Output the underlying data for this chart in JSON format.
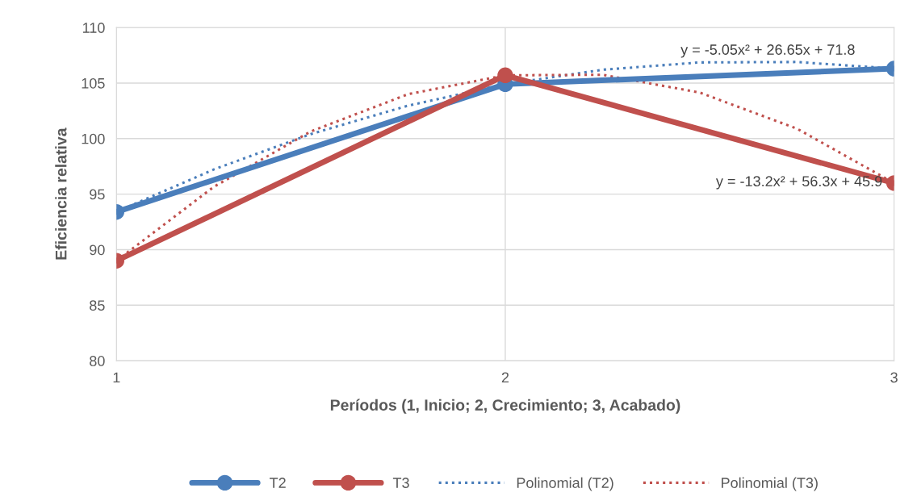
{
  "chart_data": {
    "type": "line",
    "xlabel": "Períodos (1, Inicio; 2, Crecimiento; 3, Acabado)",
    "ylabel": "Eficiencia relativa",
    "x": [
      1,
      2,
      3
    ],
    "series": [
      {
        "name": "T2",
        "color": "#4a7ebb",
        "values": [
          93.4,
          104.9,
          106.3
        ],
        "marker": "circle",
        "line_style": "solid"
      },
      {
        "name": "T3",
        "color": "#c0504d",
        "values": [
          89.0,
          105.7,
          96.0
        ],
        "marker": "circle",
        "line_style": "solid"
      },
      {
        "name": "Polinomial (T2)",
        "color": "#4a7ebb",
        "x": [
          1,
          1.25,
          1.5,
          1.75,
          2,
          2.25,
          2.5,
          2.75,
          3
        ],
        "values": [
          93.4,
          97.22,
          100.41,
          102.97,
          104.9,
          106.2,
          106.86,
          106.9,
          106.3
        ],
        "marker": "none",
        "line_style": "dotted"
      },
      {
        "name": "Polinomial (T3)",
        "color": "#c0504d",
        "x": [
          1,
          1.25,
          1.5,
          1.75,
          2,
          2.25,
          2.5,
          2.75,
          3
        ],
        "values": [
          89.0,
          95.65,
          100.65,
          104.0,
          105.7,
          105.75,
          104.15,
          100.9,
          96.0
        ],
        "marker": "none",
        "line_style": "dotted"
      }
    ],
    "annotations": [
      "y = -5.05x² + 26.65x + 71.8",
      "y = -13.2x² + 56.3x + 45.9"
    ],
    "xlim": [
      1,
      3
    ],
    "xticks": [
      1,
      2,
      3
    ],
    "ylim": [
      80,
      110
    ],
    "yticks": [
      80,
      85,
      90,
      95,
      100,
      105,
      110
    ],
    "grid": true,
    "legend": "bottom"
  }
}
